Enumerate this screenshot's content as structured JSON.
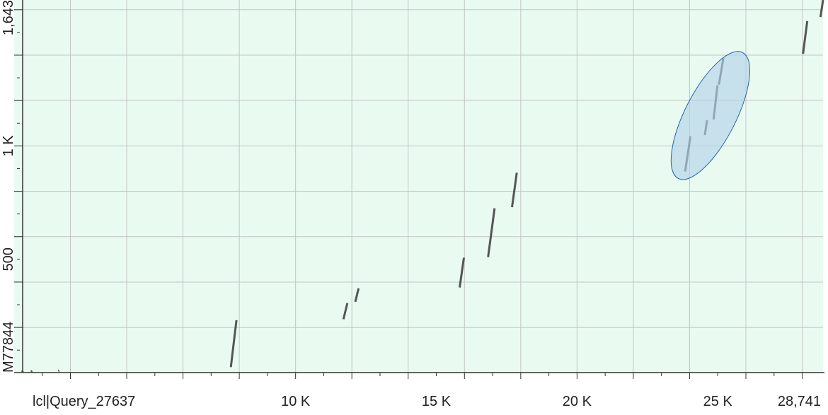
{
  "chart_data": {
    "type": "scatter",
    "xlabel": "lcl|Query_27637",
    "ylabel": "M77844",
    "xlim": [
      1,
      28741
    ],
    "ylim": [
      1,
      1643
    ],
    "x_tick_labels": [
      {
        "value": 10000,
        "label": "10 K"
      },
      {
        "value": 15000,
        "label": "15 K"
      },
      {
        "value": 20000,
        "label": "20 K"
      },
      {
        "value": 25000,
        "label": "25 K"
      },
      {
        "value": 28741,
        "label": "28,741"
      }
    ],
    "y_tick_labels": [
      {
        "value": 200,
        "label": ""
      },
      {
        "value": 500,
        "label": "500"
      },
      {
        "value": 1000,
        "label": "1 K"
      },
      {
        "value": 1643,
        "label": "1,643"
      }
    ],
    "x_major_ticks": [
      0,
      2000,
      4000,
      6000,
      8000,
      10000,
      12000,
      14000,
      16000,
      18000,
      20000,
      22000,
      24000,
      26000,
      28000
    ],
    "x_minor_step": 1000,
    "y_major_ticks": [
      0,
      200,
      400,
      600,
      800,
      1000,
      1200,
      1400,
      1600
    ],
    "y_minor_step": 100,
    "grid": true,
    "background": "#e9fbf1",
    "grid_color": "#c4c4c4",
    "segment_color": "#555555",
    "highlight_fill": "#b3d3ea",
    "highlight_stroke": "#2a62a8",
    "segments": [
      {
        "x1": 264,
        "y1": 5,
        "x2": 332,
        "y2": 8
      },
      {
        "x1": 596,
        "y1": 5,
        "x2": 644,
        "y2": 8
      },
      {
        "x1": 1568,
        "y1": 8,
        "x2": 1600,
        "y2": 10
      },
      {
        "x1": 7700,
        "y1": 25,
        "x2": 7900,
        "y2": 232
      },
      {
        "x1": 11700,
        "y1": 236,
        "x2": 11840,
        "y2": 307
      },
      {
        "x1": 12120,
        "y1": 313,
        "x2": 12240,
        "y2": 372
      },
      {
        "x1": 15830,
        "y1": 376,
        "x2": 15980,
        "y2": 507
      },
      {
        "x1": 16840,
        "y1": 510,
        "x2": 17070,
        "y2": 725
      },
      {
        "x1": 17690,
        "y1": 730,
        "x2": 17860,
        "y2": 882
      },
      {
        "x1": 23840,
        "y1": 887,
        "x2": 24030,
        "y2": 1043
      },
      {
        "x1": 24540,
        "y1": 1048,
        "x2": 24620,
        "y2": 1113
      },
      {
        "x1": 24850,
        "y1": 1116,
        "x2": 24990,
        "y2": 1267
      },
      {
        "x1": 25040,
        "y1": 1270,
        "x2": 25200,
        "y2": 1387
      },
      {
        "x1": 28030,
        "y1": 1406,
        "x2": 28180,
        "y2": 1550
      },
      {
        "x1": 28650,
        "y1": 1568,
        "x2": 28741,
        "y2": 1643
      }
    ],
    "highlight": {
      "cx": 24740,
      "cy": 1134,
      "rx": 2560,
      "ry": 294,
      "angle_deg": -63
    }
  }
}
